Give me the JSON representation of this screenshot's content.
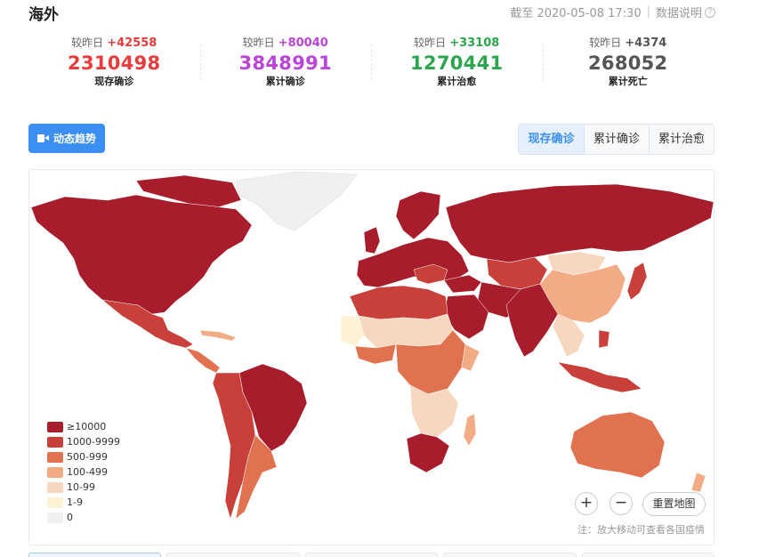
{
  "header": {
    "title": "海外",
    "update_time": "截至 2020-05-08 17:30",
    "data_note": "数据说明",
    "help_icon": "?"
  },
  "stats": [
    {
      "delta_label": "较昨日",
      "delta": "+42558",
      "value": "2310498",
      "label": "现存确诊",
      "color": "#e83b3b"
    },
    {
      "delta_label": "较昨日",
      "delta": "+80040",
      "value": "3848991",
      "label": "累计确诊",
      "color": "#b944d6"
    },
    {
      "delta_label": "较昨日",
      "delta": "+33108",
      "value": "1270441",
      "label": "累计治愈",
      "color": "#2ca64e"
    },
    {
      "delta_label": "较昨日",
      "delta": "+4374",
      "value": "268052",
      "label": "累计死亡",
      "color": "#555555"
    }
  ],
  "toolbar": {
    "trend_button_label": "动态趋势",
    "trend_icon": "video-icon",
    "tabs": [
      {
        "label": "现存确诊",
        "active": true
      },
      {
        "label": "累计确诊",
        "active": false
      },
      {
        "label": "累计治愈",
        "active": false
      }
    ]
  },
  "map": {
    "legend": [
      {
        "label": "≥10000",
        "color": "#a81d2b"
      },
      {
        "label": "1000-9999",
        "color": "#c9403a"
      },
      {
        "label": "500-999",
        "color": "#e0724f"
      },
      {
        "label": "100-499",
        "color": "#f1ac85"
      },
      {
        "label": "10-99",
        "color": "#f7d7bf"
      },
      {
        "label": "1-9",
        "color": "#fdf1d6"
      },
      {
        "label": "0",
        "color": "#f0f0f0"
      }
    ],
    "zoom_in_label": "+",
    "zoom_out_label": "−",
    "reset_label": "重置地图",
    "note": "注：放大移动可查看各国疫情"
  },
  "bottom_tabs": [
    {
      "active": true
    },
    {
      "active": false
    },
    {
      "active": false
    },
    {
      "active": false
    },
    {
      "active": false
    }
  ]
}
